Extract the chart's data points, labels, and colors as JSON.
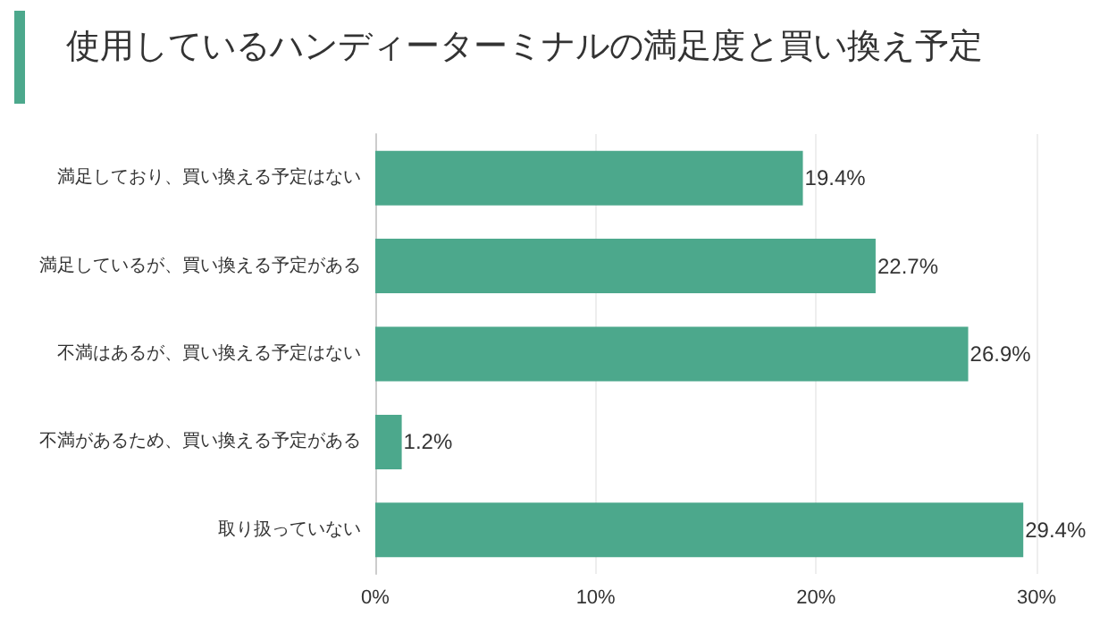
{
  "chart_data": {
    "type": "bar",
    "orientation": "horizontal",
    "title": "使用しているハンディーターミナルの満足度と買い換え予定",
    "categories": [
      "満足しており、買い換える予定はない",
      "満足しているが、買い換える予定がある",
      "不満はあるが、買い換える予定はない",
      "不満があるため、買い換える予定がある",
      "取り扱っていない"
    ],
    "values": [
      19.4,
      22.7,
      26.9,
      1.2,
      29.4
    ],
    "color": "#4ca88c",
    "value_labels": [
      "19.4%",
      "22.7%",
      "26.9%",
      "1.2%",
      "29.4%"
    ],
    "xlim": [
      0,
      30
    ],
    "xticks": [
      {
        "value": 0,
        "label": "0%"
      },
      {
        "value": 10,
        "label": "10%"
      },
      {
        "value": 20,
        "label": "20%"
      },
      {
        "value": 30,
        "label": "30%"
      }
    ],
    "grid": "x"
  }
}
